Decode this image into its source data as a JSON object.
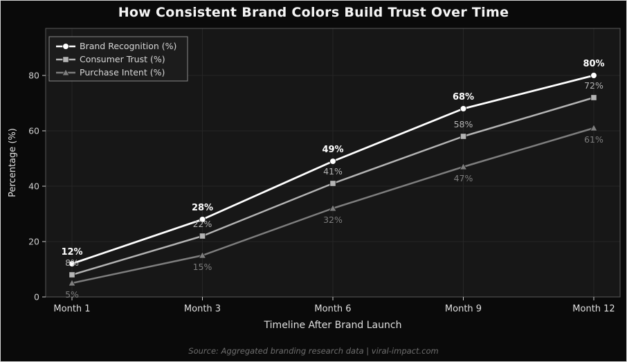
{
  "page": {
    "source_caption": "Source: Aggregated branding research data  |  viral-impact.com"
  },
  "chart_data": {
    "type": "line",
    "title": "How Consistent Brand Colors Build Trust Over Time",
    "xlabel": "Timeline After Brand Launch",
    "ylabel": "Percentage (%)",
    "categories": [
      "Month 1",
      "Month 3",
      "Month 6",
      "Month 9",
      "Month 12"
    ],
    "series": [
      {
        "name": "Brand Recognition (%)",
        "values": [
          12,
          28,
          49,
          68,
          80
        ],
        "labels": [
          "12%",
          "28%",
          "49%",
          "68%",
          "80%"
        ],
        "color": "#ffffff",
        "marker": "circle",
        "label_position": "above"
      },
      {
        "name": "Consumer Trust (%)",
        "values": [
          8,
          22,
          41,
          58,
          72
        ],
        "labels": [
          "8%",
          "22%",
          "41%",
          "58%",
          "72%"
        ],
        "color": "#b4b4b4",
        "marker": "square",
        "label_position": "above"
      },
      {
        "name": "Purchase Intent (%)",
        "values": [
          5,
          15,
          32,
          47,
          61
        ],
        "labels": [
          "5%",
          "15%",
          "32%",
          "47%",
          "61%"
        ],
        "color": "#7e7e7e",
        "marker": "triangle",
        "label_position": "below"
      }
    ],
    "yticks": [
      0,
      20,
      40,
      60,
      80
    ],
    "ylim": [
      0,
      97
    ],
    "grid": true,
    "legend_position": "upper left"
  },
  "colors": {
    "page_background": "#0a0a0a",
    "plot_background": "#171717",
    "plot_border": "#5a5a5a",
    "grid": "#262626",
    "tick_text": "#cfcfcf",
    "axis_text": "#e0e0e0",
    "legend_background": "#1c1c1c",
    "legend_border": "#8a8a8a",
    "legend_text": "#d8d8d8",
    "title_text": "#f5f5f5",
    "source_text": "#6e6e6e"
  }
}
